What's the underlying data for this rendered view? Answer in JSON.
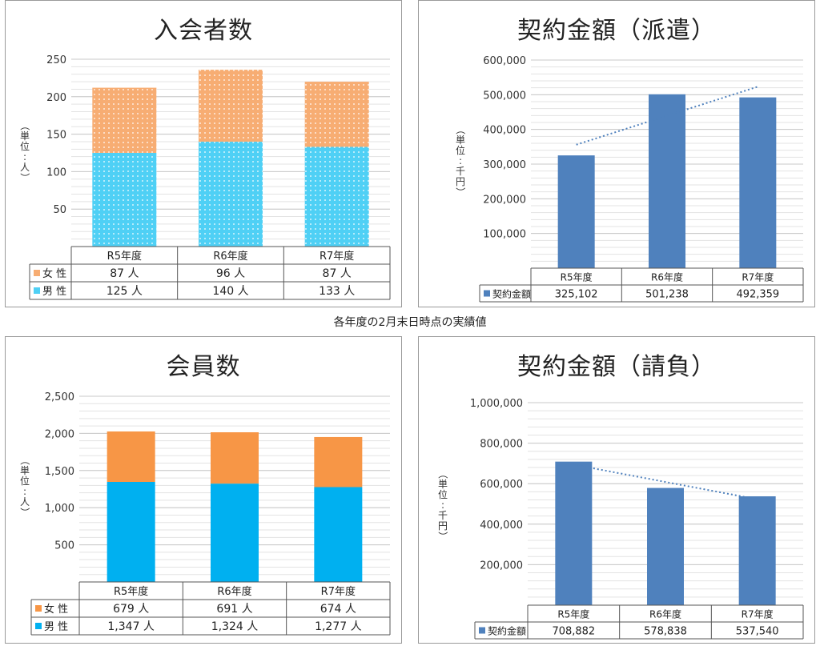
{
  "note": "各年度の2月末日時点の実績値",
  "chart_data": [
    {
      "id": "members_joined",
      "type": "bar",
      "stacked": true,
      "title": "入会者数",
      "ylabel": "（単位:人）",
      "ylim": [
        0,
        250
      ],
      "yticks": [
        "50",
        "100",
        "150",
        "200",
        "250"
      ],
      "categories": [
        "R5年度",
        "R6年度",
        "R7年度"
      ],
      "series": [
        {
          "name": "男 性",
          "values": [
            125,
            140,
            133
          ],
          "table": [
            "125 人",
            "140 人",
            "133 人"
          ],
          "color": "#4fd0f5",
          "pattern": true
        },
        {
          "name": "女 性",
          "values": [
            87,
            96,
            87
          ],
          "table": [
            "87 人",
            "96 人",
            "87 人"
          ],
          "color": "#f7ad73",
          "pattern": true
        }
      ],
      "grid": true
    },
    {
      "id": "contract_dispatch",
      "type": "bar",
      "title": "契約金額（派遣）",
      "ylabel": "（単位:千円）",
      "ylim": [
        0,
        600000
      ],
      "yticks": [
        "100,000",
        "200,000",
        "300,000",
        "400,000",
        "500,000",
        "600,000"
      ],
      "categories": [
        "R5年度",
        "R6年度",
        "R7年度"
      ],
      "series": [
        {
          "name": "契約金額",
          "values": [
            325102,
            501238,
            492359
          ],
          "table": [
            "325,102",
            "501,238",
            "492,359"
          ],
          "color": "#4f81bd"
        }
      ],
      "trendline": true,
      "grid": true
    },
    {
      "id": "members_total",
      "type": "bar",
      "stacked": true,
      "title": "会員数",
      "ylabel": "（単位:人）",
      "ylim": [
        0,
        2500
      ],
      "yticks": [
        "500",
        "1,000",
        "1,500",
        "2,000",
        "2,500"
      ],
      "categories": [
        "R5年度",
        "R6年度",
        "R7年度"
      ],
      "series": [
        {
          "name": "男 性",
          "values": [
            1347,
            1324,
            1277
          ],
          "table": [
            "1,347 人",
            "1,324 人",
            "1,277 人"
          ],
          "color": "#00b0f0"
        },
        {
          "name": "女 性",
          "values": [
            679,
            691,
            674
          ],
          "table": [
            "679 人",
            "691 人",
            "674 人"
          ],
          "color": "#f79646"
        }
      ],
      "grid": true
    },
    {
      "id": "contract_subcontract",
      "type": "bar",
      "title": "契約金額（請負）",
      "ylabel": "（単位:千円）",
      "ylim": [
        0,
        1000000
      ],
      "yticks": [
        "200,000",
        "400,000",
        "600,000",
        "800,000",
        "1,000,000"
      ],
      "categories": [
        "R5年度",
        "R6年度",
        "R7年度"
      ],
      "series": [
        {
          "name": "契約金額",
          "values": [
            708882,
            578838,
            537540
          ],
          "table": [
            "708,882",
            "578,838",
            "537,540"
          ],
          "color": "#4f81bd"
        }
      ],
      "trendline": true,
      "grid": true
    }
  ]
}
